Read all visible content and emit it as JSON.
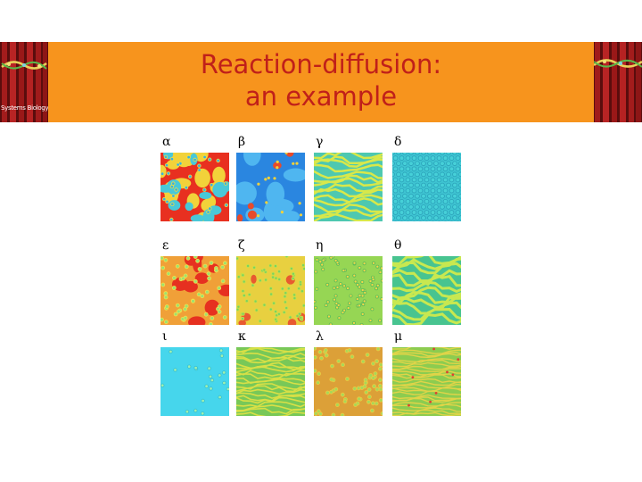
{
  "slide": {
    "title_line1": "Reaction-diffusion:",
    "title_line2": "an example",
    "banner_caption": "Systems Biology"
  },
  "panels": [
    {
      "label": "α",
      "icon": "pattern-hot-spots"
    },
    {
      "label": "β",
      "icon": "pattern-blue-waves"
    },
    {
      "label": "γ",
      "icon": "pattern-labyrinth-stripes"
    },
    {
      "label": "δ",
      "icon": "pattern-hexagonal-spots"
    },
    {
      "label": "ε",
      "icon": "pattern-red-spots-mixed"
    },
    {
      "label": "ζ",
      "icon": "pattern-yellow-spots"
    },
    {
      "label": "η",
      "icon": "pattern-green-spots"
    },
    {
      "label": "θ",
      "icon": "pattern-worm-stripes"
    },
    {
      "label": "ι",
      "icon": "pattern-sparse-spots-cyan"
    },
    {
      "label": "κ",
      "icon": "pattern-fine-stripes"
    },
    {
      "label": "λ",
      "icon": "pattern-orange-spots"
    },
    {
      "label": "μ",
      "icon": "pattern-defect-stripes"
    }
  ],
  "colors": {
    "title_bar": "#f7941d",
    "title_text": "#c0201a",
    "banner_red": "#8b1a1a"
  }
}
